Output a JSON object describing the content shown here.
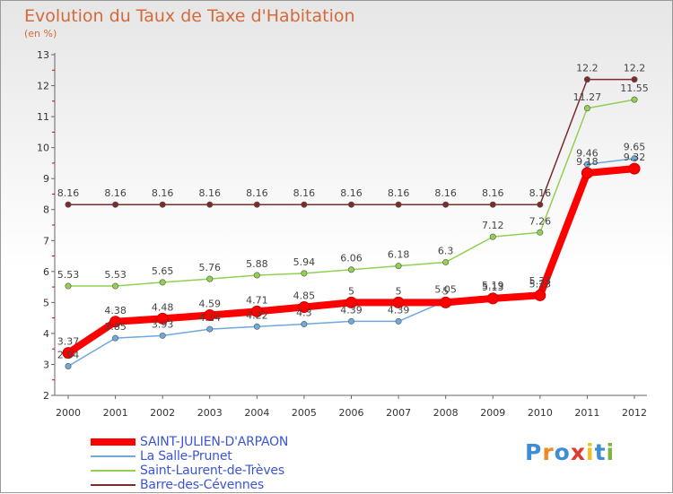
{
  "header": {
    "title": "Evolution du Taux de Taxe d'Habitation",
    "subtitle": "(en %)"
  },
  "brand": {
    "logo_text": "Proxiti",
    "letter_colors": [
      "#3d8ed6",
      "#f08a1e",
      "#3d8ed6",
      "#e03a2f",
      "#f0c020",
      "#3d8ed6",
      "#7cb342"
    ]
  },
  "chart_data": {
    "type": "line",
    "x": [
      2000,
      2001,
      2002,
      2003,
      2004,
      2005,
      2006,
      2007,
      2008,
      2009,
      2010,
      2011,
      2012
    ],
    "ylim": [
      2,
      13
    ],
    "yticks": [
      2,
      3,
      4,
      5,
      6,
      7,
      8,
      9,
      10,
      11,
      12,
      13
    ],
    "grid": false,
    "legend_position": "bottom-left",
    "series": [
      {
        "name": "SAINT-JULIEN-D'ARPAON",
        "color": "#ff0000",
        "labels": true,
        "values": [
          3.37,
          4.38,
          4.48,
          4.59,
          4.71,
          4.85,
          5,
          5,
          5,
          5.13,
          5.23,
          9.18,
          9.32
        ]
      },
      {
        "name": "La Salle-Prunet",
        "color": "#6fa8dc",
        "labels": true,
        "values": [
          2.94,
          3.85,
          3.93,
          4.14,
          4.22,
          4.3,
          4.39,
          4.39,
          5.05,
          5.19,
          5.33,
          9.46,
          9.65
        ]
      },
      {
        "name": "Saint-Laurent-de-Trèves",
        "color": "#92d050",
        "labels": true,
        "values": [
          5.53,
          5.53,
          5.65,
          5.76,
          5.88,
          5.94,
          6.06,
          6.18,
          6.3,
          7.12,
          7.26,
          11.27,
          11.55
        ]
      },
      {
        "name": "Barre-des-Cévennes",
        "color": "#7b2d2d",
        "labels": true,
        "values": [
          8.16,
          8.16,
          8.16,
          8.16,
          8.16,
          8.16,
          8.16,
          8.16,
          8.16,
          8.16,
          8.16,
          12.2,
          12.2
        ]
      }
    ]
  }
}
